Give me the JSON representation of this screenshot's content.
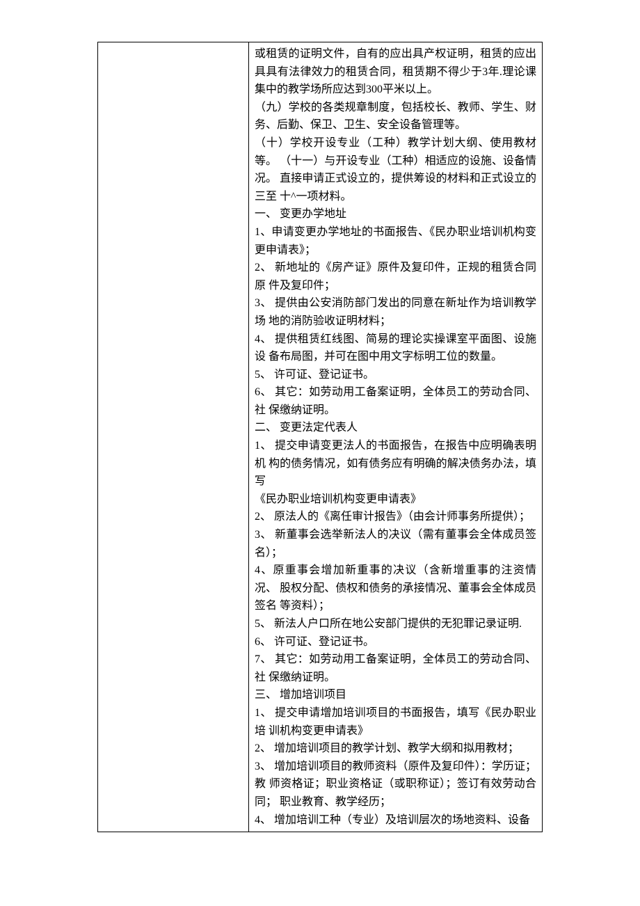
{
  "doc": {
    "font_family": "SimSun",
    "font_size_pt": 12,
    "line_height": 1.6,
    "text_color": "#000000",
    "background_color": "#ffffff",
    "border_color": "#000000",
    "lines": [
      "或租赁的证明文件，自有的应出具产权证明，租赁的应出具具有法律效力的租赁合同，租赁期不得少于3年.理论课集中的教学场所应达到300平米以上。",
      "（九）学校的各类规章制度，包括校长、教师、学生、财务、后勤、保卫、卫生、安全设备管理等。",
      "（十）学校开设专业（工种）教学计划大纲、使用教材等。 （十一）与开设专业（工种）相适应的设施、设备情况。 直接申请正式设立的，提供筹设的材料和正式设立的三至 十^一项材料。",
      "一、 变更办学地址",
      "1、申请变更办学地址的书面报告、《民办职业培训机构变 更申请表》；",
      "2、 新地址的《房产证》原件及复印件，正规的租赁合同原 件及复印件；",
      "3、 提供由公安消防部门发出的同意在新址作为培训教学场 地的消防验收证明材料；",
      "4、 提供租赁红线图、简易的理论实操课室平面图、设施设 备布局图，并可在图中用文字标明工位的数量。",
      "5、 许可证、登记证书。",
      "6、 其它：如劳动用工备案证明，全体员工的劳动合同、社 保缴纳证明。",
      "二、 变更法定代表人",
      "1、 提交申请变更法人的书面报告，在报告中应明确表明机 构的债务情况，如有债务应有明确的解决债务办法，填写",
      "《民办职业培训机构变更申请表》",
      "2、 原法人的《离任审计报告》（由会计师事务所提供）；",
      "3、 新董事会选举新法人的决议（需有董事会全体成员签名）；",
      "4、原重事会增加新重事的决议（含新增重事的注资情况、 股权分配、债权和债务的承接情况、董事会全体成员签名 等资料）；",
      "5、 新法人户口所在地公安部门提供的无犯罪记录证明.",
      "6、 许可证、登记证书。",
      "7、 其它：如劳动用工备案证明，全体员工的劳动合同、社 保缴纳证明。",
      "三、 增加培训项目",
      "1、 提交申请增加培训项目的书面报告，填写《民办职业培 训机构变更申请表》",
      "2、 增加培训项目的教学计划、教学大纲和拟用教材；",
      "3、 增加培训项目的教师资料（原件及复印件）：学历证；教 师资格证；职业资格证（或职称证）；签订有效劳动合同； 职业教育、教学经历；",
      "4、 增加培训工种（专业）及培训层次的场地资料、设备"
    ]
  }
}
